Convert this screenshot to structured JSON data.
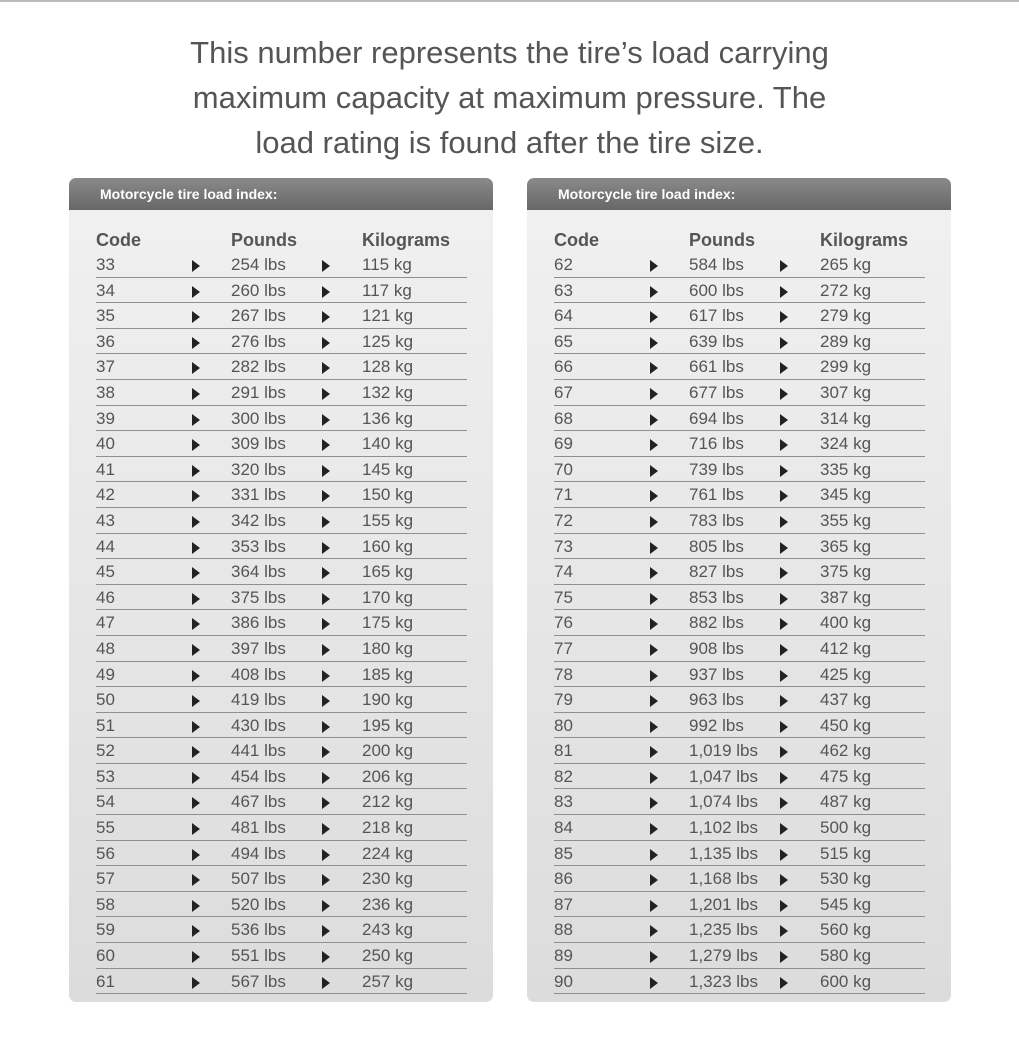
{
  "intro": [
    "This number represents the tire’s load carrying",
    "maximum capacity at maximum pressure. The",
    "load rating is found after the tire size."
  ],
  "tables": [
    {
      "title": "Motorcycle tire load index:",
      "headers": [
        "Code",
        "Pounds",
        "Kilograms"
      ],
      "rows": [
        [
          "33",
          "254 lbs",
          "115 kg"
        ],
        [
          "34",
          "260 lbs",
          "117 kg"
        ],
        [
          "35",
          "267 lbs",
          "121 kg"
        ],
        [
          "36",
          "276 lbs",
          "125 kg"
        ],
        [
          "37",
          "282 lbs",
          "128 kg"
        ],
        [
          "38",
          "291 lbs",
          "132 kg"
        ],
        [
          "39",
          "300 lbs",
          "136 kg"
        ],
        [
          "40",
          "309 lbs",
          "140 kg"
        ],
        [
          "41",
          "320 lbs",
          "145 kg"
        ],
        [
          "42",
          "331 lbs",
          "150 kg"
        ],
        [
          "43",
          "342 lbs",
          "155 kg"
        ],
        [
          "44",
          "353 lbs",
          "160 kg"
        ],
        [
          "45",
          "364 lbs",
          "165 kg"
        ],
        [
          "46",
          "375 lbs",
          "170 kg"
        ],
        [
          "47",
          "386 lbs",
          "175 kg"
        ],
        [
          "48",
          "397 lbs",
          "180 kg"
        ],
        [
          "49",
          "408 lbs",
          "185 kg"
        ],
        [
          "50",
          "419 lbs",
          "190 kg"
        ],
        [
          "51",
          "430 lbs",
          "195 kg"
        ],
        [
          "52",
          "441 lbs",
          "200 kg"
        ],
        [
          "53",
          "454 lbs",
          "206 kg"
        ],
        [
          "54",
          "467 lbs",
          "212 kg"
        ],
        [
          "55",
          "481 lbs",
          "218 kg"
        ],
        [
          "56",
          "494 lbs",
          "224 kg"
        ],
        [
          "57",
          "507 lbs",
          "230 kg"
        ],
        [
          "58",
          "520 lbs",
          "236 kg"
        ],
        [
          "59",
          "536 lbs",
          "243 kg"
        ],
        [
          "60",
          "551 lbs",
          "250 kg"
        ],
        [
          "61",
          "567 lbs",
          "257 kg"
        ]
      ]
    },
    {
      "title": "Motorcycle tire load index:",
      "headers": [
        "Code",
        "Pounds",
        "Kilograms"
      ],
      "rows": [
        [
          "62",
          "584 lbs",
          "265 kg"
        ],
        [
          "63",
          "600 lbs",
          "272 kg"
        ],
        [
          "64",
          "617 lbs",
          "279 kg"
        ],
        [
          "65",
          "639 lbs",
          "289 kg"
        ],
        [
          "66",
          "661 lbs",
          "299 kg"
        ],
        [
          "67",
          "677 lbs",
          "307 kg"
        ],
        [
          "68",
          "694 lbs",
          "314 kg"
        ],
        [
          "69",
          "716 lbs",
          "324 kg"
        ],
        [
          "70",
          "739 lbs",
          "335 kg"
        ],
        [
          "71",
          "761 lbs",
          "345 kg"
        ],
        [
          "72",
          "783 lbs",
          "355 kg"
        ],
        [
          "73",
          "805 lbs",
          "365 kg"
        ],
        [
          "74",
          "827 lbs",
          "375 kg"
        ],
        [
          "75",
          "853 lbs",
          "387 kg"
        ],
        [
          "76",
          "882 lbs",
          "400 kg"
        ],
        [
          "77",
          "908 lbs",
          "412 kg"
        ],
        [
          "78",
          "937 lbs",
          "425 kg"
        ],
        [
          "79",
          "963 lbs",
          "437 kg"
        ],
        [
          "80",
          "992 lbs",
          "450 kg"
        ],
        [
          "81",
          "1,019 lbs",
          "462 kg"
        ],
        [
          "82",
          "1,047 lbs",
          "475 kg"
        ],
        [
          "83",
          "1,074 lbs",
          "487 kg"
        ],
        [
          "84",
          "1,102 lbs",
          "500 kg"
        ],
        [
          "85",
          "1,135 lbs",
          "515 kg"
        ],
        [
          "86",
          "1,168 lbs",
          "530 kg"
        ],
        [
          "87",
          "1,201 lbs",
          "545 kg"
        ],
        [
          "88",
          "1,235 lbs",
          "560 kg"
        ],
        [
          "89",
          "1,279 lbs",
          "580 kg"
        ],
        [
          "90",
          "1,323 lbs",
          "600 kg"
        ]
      ]
    }
  ]
}
